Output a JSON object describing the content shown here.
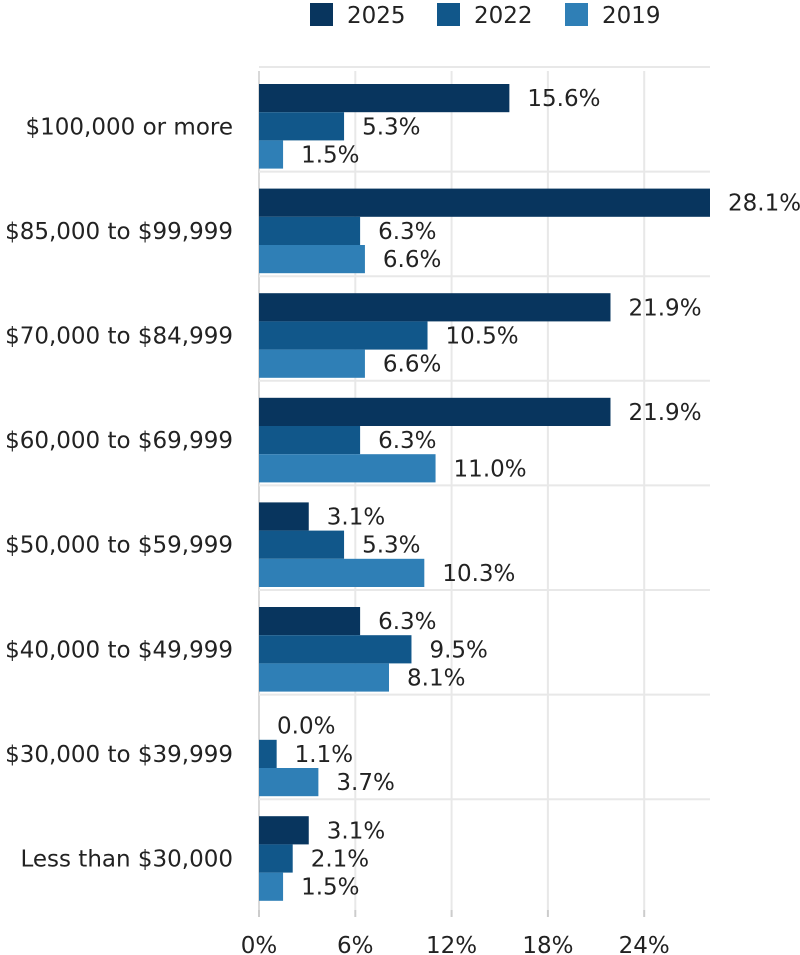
{
  "chart_data": {
    "type": "bar",
    "orientation": "horizontal",
    "categories": [
      "$100,000 or more",
      "$85,000 to $99,999",
      "$70,000 to $84,999",
      "$60,000 to $69,999",
      "$50,000 to $59,999",
      "$40,000 to $49,999",
      "$30,000 to $39,999",
      "Less than $30,000"
    ],
    "series": [
      {
        "name": "2025",
        "color": "#08355e",
        "values": [
          15.6,
          28.1,
          21.9,
          21.9,
          3.1,
          6.3,
          0.0,
          3.1
        ],
        "labels": [
          "15.6%",
          "28.1%",
          "21.9%",
          "21.9%",
          "3.1%",
          "6.3%",
          "0.0%",
          "3.1%"
        ]
      },
      {
        "name": "2022",
        "color": "#11578a",
        "values": [
          5.3,
          6.3,
          10.5,
          6.3,
          5.3,
          9.5,
          1.1,
          2.1
        ],
        "labels": [
          "5.3%",
          "6.3%",
          "10.5%",
          "6.3%",
          "5.3%",
          "9.5%",
          "1.1%",
          "2.1%"
        ]
      },
      {
        "name": "2019",
        "color": "#2f7fb6",
        "values": [
          1.5,
          6.6,
          6.6,
          11.0,
          10.3,
          8.1,
          3.7,
          1.5
        ],
        "labels": [
          "1.5%",
          "6.6%",
          "6.6%",
          "11.0%",
          "10.3%",
          "8.1%",
          "3.7%",
          "1.5%"
        ]
      }
    ],
    "x_ticks": [
      0,
      6,
      12,
      18,
      24
    ],
    "x_tick_labels": [
      "0%",
      "6%",
      "12%",
      "18%",
      "24%"
    ],
    "xlim": [
      0,
      28.1
    ],
    "legend_position": "top",
    "grid": true
  }
}
